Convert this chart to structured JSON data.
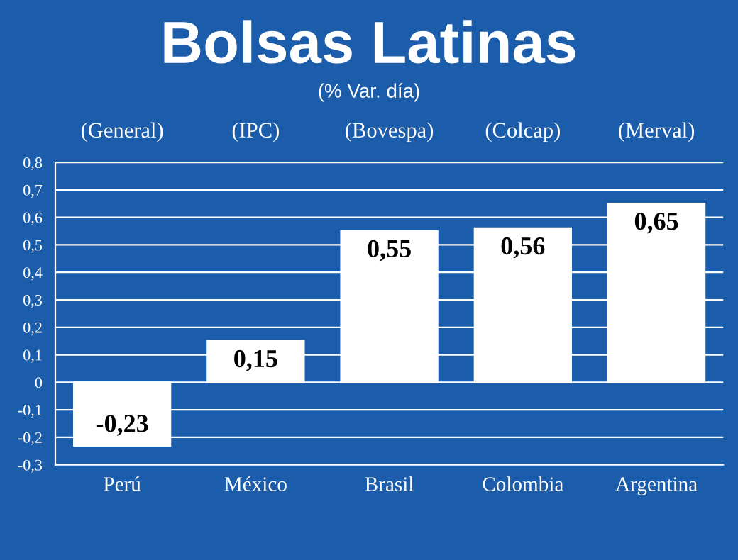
{
  "chart_data": {
    "type": "bar",
    "title": "Bolsas Latinas",
    "subtitle": "(% Var. día)",
    "categories": [
      "Perú",
      "México",
      "Brasil",
      "Colombia",
      "Argentina"
    ],
    "values": [
      -0.23,
      0.15,
      0.55,
      0.56,
      0.65
    ],
    "value_labels": [
      "-0,23",
      "0,15",
      "0,55",
      "0,56",
      "0,65"
    ],
    "color": "#ffffff",
    "annotations": [
      "(General)",
      "(IPC)",
      "(Bovespa)",
      "(Colcap)",
      "(Merval)"
    ],
    "ylim": [
      -0.3,
      0.8
    ],
    "yticks": [
      {
        "value": -0.3,
        "label": "-0,3"
      },
      {
        "value": -0.2,
        "label": "-0,2"
      },
      {
        "value": -0.1,
        "label": "-0,1"
      },
      {
        "value": 0,
        "label": "0"
      },
      {
        "value": 0.1,
        "label": "0,1"
      },
      {
        "value": 0.2,
        "label": "0,2"
      },
      {
        "value": 0.3,
        "label": "0,3"
      },
      {
        "value": 0.4,
        "label": "0,4"
      },
      {
        "value": 0.5,
        "label": "0,5"
      },
      {
        "value": 0.6,
        "label": "0,6"
      },
      {
        "value": 0.7,
        "label": "0,7"
      },
      {
        "value": 0.8,
        "label": "0,8"
      }
    ],
    "grid": "y"
  }
}
